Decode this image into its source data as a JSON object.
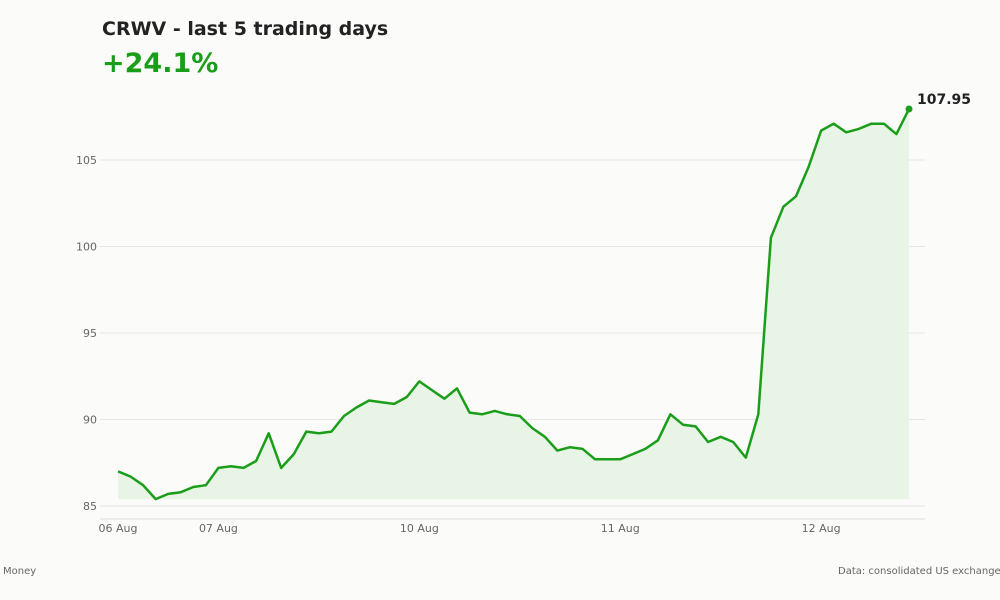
{
  "header": {
    "title": "CRWV - last 5 trading days",
    "change": "+24.1%"
  },
  "footer": {
    "left": "Money",
    "right": "Data: consolidated US exchange d"
  },
  "colors": {
    "line": "#1a9e1a",
    "fill": "#e8f4e6",
    "grid": "#e6e6e3",
    "change_text": "#1a9e1a"
  },
  "chart_data": {
    "type": "area",
    "title": "CRWV - last 5 trading days",
    "ylim": [
      84.5,
      108.5
    ],
    "yticks": [
      85,
      90,
      95,
      100,
      105
    ],
    "xticks": [
      {
        "label": "06 Aug",
        "index": 0
      },
      {
        "label": "07 Aug",
        "index": 8
      },
      {
        "label": "10 Aug",
        "index": 24
      },
      {
        "label": "11 Aug",
        "index": 40
      },
      {
        "label": "12 Aug",
        "index": 56
      }
    ],
    "grid": true,
    "last_value_label": "107.95",
    "values": [
      87.0,
      86.7,
      86.2,
      85.4,
      85.7,
      85.8,
      86.1,
      86.2,
      87.2,
      87.3,
      87.2,
      87.6,
      89.2,
      87.2,
      88.0,
      89.3,
      89.2,
      89.3,
      90.2,
      90.7,
      91.1,
      91.0,
      90.9,
      91.3,
      92.2,
      91.7,
      91.2,
      91.8,
      90.4,
      90.3,
      90.5,
      90.3,
      90.2,
      89.5,
      89.0,
      88.2,
      88.4,
      88.3,
      87.7,
      87.7,
      87.7,
      88.0,
      88.3,
      88.8,
      90.3,
      89.7,
      89.6,
      88.7,
      89.0,
      88.7,
      87.8,
      90.3,
      100.5,
      102.3,
      102.9,
      104.6,
      106.7,
      107.1,
      106.6,
      106.8,
      107.1,
      107.1,
      106.5,
      107.95
    ]
  }
}
